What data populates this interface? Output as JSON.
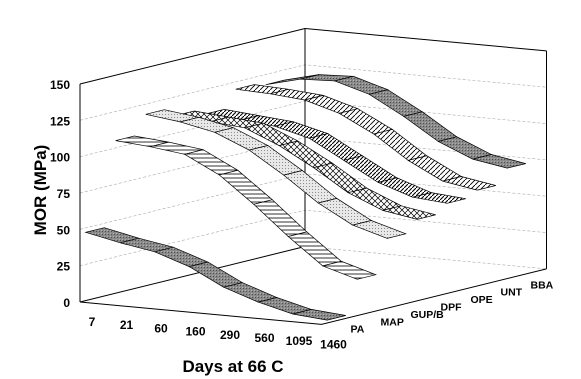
{
  "chart_data": {
    "type": "3d-ribbon",
    "ylabel": "MOR (MPa)",
    "xlabel": "Days at 66 C",
    "ylim": [
      0,
      150
    ],
    "yticks": [
      "0",
      "25",
      "50",
      "75",
      "100",
      "125",
      "150"
    ],
    "categories": [
      "7",
      "21",
      "60",
      "160",
      "290",
      "560",
      "1095",
      "1460"
    ],
    "series": [
      {
        "name": "PA",
        "pattern": "dark-gray",
        "values": [
          47,
          42,
          38,
          30,
          18,
          10,
          4,
          2
        ]
      },
      {
        "name": "MAP",
        "pattern": "horizontal",
        "values": [
          105,
          103,
          100,
          88,
          70,
          50,
          32,
          25
        ]
      },
      {
        "name": "GUP/B",
        "pattern": "light-dots",
        "values": [
          118,
          115,
          110,
          100,
          85,
          68,
          55,
          48
        ]
      },
      {
        "name": "DPF",
        "pattern": "crosshatch",
        "values": [
          112,
          110,
          108,
          98,
          85,
          70,
          60,
          56
        ]
      },
      {
        "name": "OPE",
        "pattern": "diagonal-dense",
        "values": [
          108,
          106,
          104,
          98,
          85,
          72,
          64,
          62
        ]
      },
      {
        "name": "UNT",
        "pattern": "diagonal",
        "values": [
          120,
          119,
          117,
          110,
          98,
          82,
          70,
          66
        ]
      },
      {
        "name": "BBA",
        "pattern": "dark-gray",
        "values": [
          118,
          124,
          125,
          118,
          105,
          90,
          80,
          76
        ]
      }
    ],
    "grid": true
  }
}
